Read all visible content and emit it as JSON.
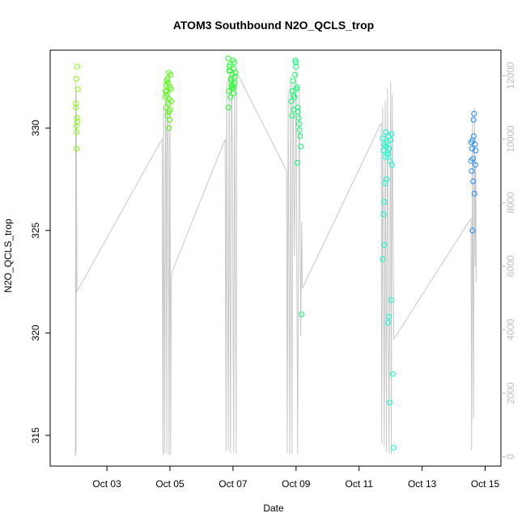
{
  "chart_data": {
    "type": "scatter",
    "title": "ATOM3 Southbound N2O_QCLS_trop",
    "xlabel": "Date",
    "ylabel": "N2O_QCLS_trop",
    "x_ticks": [
      "Oct 03",
      "Oct 05",
      "Oct 07",
      "Oct 09",
      "Oct 11",
      "Oct 13",
      "Oct 15"
    ],
    "x_tick_values": [
      3,
      5,
      7,
      9,
      11,
      13,
      15
    ],
    "xlim": [
      1.2,
      15.5
    ],
    "y_ticks": [
      315,
      320,
      325,
      330
    ],
    "ylim": [
      313.5,
      333.8
    ],
    "y2_ticks": [
      0,
      2000,
      4000,
      6000,
      8000,
      10000,
      12000
    ],
    "y2lim": [
      -300,
      12800
    ],
    "y2_label": "",
    "grid": false,
    "legend": "none",
    "point_color_note": "points colored green to blue by date",
    "altitude_color": "#c8c8c8",
    "points": [
      {
        "x": 2.02,
        "y": 331.2,
        "color": "#7fff00"
      },
      {
        "x": 2.05,
        "y": 330.5,
        "color": "#7fff00"
      },
      {
        "x": 2.03,
        "y": 330.1,
        "color": "#7fff00"
      },
      {
        "x": 2.06,
        "y": 330.3,
        "color": "#7fff00"
      },
      {
        "x": 2.04,
        "y": 329.8,
        "color": "#7fff00"
      },
      {
        "x": 2.02,
        "y": 331.0,
        "color": "#7fff00"
      },
      {
        "x": 2.08,
        "y": 331.9,
        "color": "#7fff00"
      },
      {
        "x": 2.03,
        "y": 332.4,
        "color": "#7fff00"
      },
      {
        "x": 2.06,
        "y": 333.0,
        "color": "#7fff00"
      },
      {
        "x": 2.04,
        "y": 329.0,
        "color": "#7fff00"
      },
      {
        "x": 4.85,
        "y": 331.5,
        "color": "#4cff00"
      },
      {
        "x": 4.88,
        "y": 332.1,
        "color": "#4cff00"
      },
      {
        "x": 4.9,
        "y": 331.8,
        "color": "#4cff00"
      },
      {
        "x": 4.92,
        "y": 332.4,
        "color": "#4cff00"
      },
      {
        "x": 4.95,
        "y": 331.2,
        "color": "#4cff00"
      },
      {
        "x": 4.97,
        "y": 330.8,
        "color": "#4cff00"
      },
      {
        "x": 5.0,
        "y": 332.0,
        "color": "#4cff00"
      },
      {
        "x": 5.02,
        "y": 332.6,
        "color": "#4cff00"
      },
      {
        "x": 4.87,
        "y": 331.0,
        "color": "#4cff00"
      },
      {
        "x": 4.93,
        "y": 330.6,
        "color": "#4cff00"
      },
      {
        "x": 4.98,
        "y": 331.4,
        "color": "#4cff00"
      },
      {
        "x": 5.03,
        "y": 331.9,
        "color": "#4cff00"
      },
      {
        "x": 4.9,
        "y": 332.3,
        "color": "#4cff00"
      },
      {
        "x": 4.96,
        "y": 332.7,
        "color": "#4cff00"
      },
      {
        "x": 5.01,
        "y": 330.9,
        "color": "#4cff00"
      },
      {
        "x": 4.99,
        "y": 330.4,
        "color": "#4cff00"
      },
      {
        "x": 4.89,
        "y": 331.6,
        "color": "#4cff00"
      },
      {
        "x": 5.04,
        "y": 331.3,
        "color": "#4cff00"
      },
      {
        "x": 4.94,
        "y": 332.2,
        "color": "#4cff00"
      },
      {
        "x": 4.86,
        "y": 331.8,
        "color": "#4cff00"
      },
      {
        "x": 4.97,
        "y": 330.0,
        "color": "#4cff00"
      },
      {
        "x": 6.85,
        "y": 333.4,
        "color": "#1aff29"
      },
      {
        "x": 6.88,
        "y": 332.8,
        "color": "#1aff29"
      },
      {
        "x": 6.9,
        "y": 333.1,
        "color": "#1aff29"
      },
      {
        "x": 6.93,
        "y": 332.4,
        "color": "#1aff29"
      },
      {
        "x": 6.95,
        "y": 332.0,
        "color": "#1aff29"
      },
      {
        "x": 6.98,
        "y": 332.6,
        "color": "#1aff29"
      },
      {
        "x": 7.0,
        "y": 333.3,
        "color": "#1aff29"
      },
      {
        "x": 7.03,
        "y": 332.9,
        "color": "#1aff29"
      },
      {
        "x": 7.05,
        "y": 332.2,
        "color": "#1aff29"
      },
      {
        "x": 7.08,
        "y": 332.7,
        "color": "#1aff29"
      },
      {
        "x": 6.87,
        "y": 331.8,
        "color": "#1aff29"
      },
      {
        "x": 6.92,
        "y": 331.5,
        "color": "#1aff29"
      },
      {
        "x": 6.97,
        "y": 332.1,
        "color": "#1aff29"
      },
      {
        "x": 7.02,
        "y": 331.7,
        "color": "#1aff29"
      },
      {
        "x": 7.06,
        "y": 332.5,
        "color": "#1aff29"
      },
      {
        "x": 6.89,
        "y": 333.0,
        "color": "#1aff29"
      },
      {
        "x": 6.94,
        "y": 332.3,
        "color": "#1aff29"
      },
      {
        "x": 6.99,
        "y": 331.9,
        "color": "#1aff29"
      },
      {
        "x": 7.04,
        "y": 333.2,
        "color": "#1aff29"
      },
      {
        "x": 6.86,
        "y": 331.0,
        "color": "#1aff29"
      },
      {
        "x": 7.01,
        "y": 332.0,
        "color": "#1aff29"
      },
      {
        "x": 6.91,
        "y": 332.8,
        "color": "#1aff29"
      },
      {
        "x": 8.85,
        "y": 331.3,
        "color": "#00ff66"
      },
      {
        "x": 8.88,
        "y": 331.8,
        "color": "#00ff66"
      },
      {
        "x": 8.9,
        "y": 332.3,
        "color": "#00ff66"
      },
      {
        "x": 8.93,
        "y": 330.9,
        "color": "#00ff66"
      },
      {
        "x": 8.95,
        "y": 331.5,
        "color": "#00ff66"
      },
      {
        "x": 8.98,
        "y": 333.3,
        "color": "#00ff66"
      },
      {
        "x": 9.0,
        "y": 333.0,
        "color": "#00ff66"
      },
      {
        "x": 9.03,
        "y": 332.0,
        "color": "#00ff66"
      },
      {
        "x": 9.05,
        "y": 331.0,
        "color": "#00ff66"
      },
      {
        "x": 9.08,
        "y": 330.5,
        "color": "#00ff66"
      },
      {
        "x": 9.1,
        "y": 330.2,
        "color": "#00ff66"
      },
      {
        "x": 9.13,
        "y": 329.6,
        "color": "#00ff66"
      },
      {
        "x": 9.15,
        "y": 329.1,
        "color": "#00ff66"
      },
      {
        "x": 8.87,
        "y": 330.6,
        "color": "#00ff66"
      },
      {
        "x": 8.92,
        "y": 331.6,
        "color": "#00ff66"
      },
      {
        "x": 8.97,
        "y": 332.6,
        "color": "#00ff66"
      },
      {
        "x": 9.02,
        "y": 331.9,
        "color": "#00ff66"
      },
      {
        "x": 9.06,
        "y": 330.8,
        "color": "#00ff66"
      },
      {
        "x": 9.11,
        "y": 329.9,
        "color": "#00ff66"
      },
      {
        "x": 9.04,
        "y": 328.3,
        "color": "#00ff66"
      },
      {
        "x": 9.18,
        "y": 320.9,
        "color": "#00ff66"
      },
      {
        "x": 8.99,
        "y": 333.2,
        "color": "#00ff66"
      },
      {
        "x": 11.75,
        "y": 329.5,
        "color": "#00ffcc"
      },
      {
        "x": 11.78,
        "y": 328.9,
        "color": "#00ffcc"
      },
      {
        "x": 11.8,
        "y": 329.2,
        "color": "#00ffcc"
      },
      {
        "x": 11.83,
        "y": 328.6,
        "color": "#00ffcc"
      },
      {
        "x": 11.85,
        "y": 329.8,
        "color": "#00ffcc"
      },
      {
        "x": 11.88,
        "y": 329.3,
        "color": "#00ffcc"
      },
      {
        "x": 11.9,
        "y": 328.8,
        "color": "#00ffcc"
      },
      {
        "x": 11.93,
        "y": 329.6,
        "color": "#00ffcc"
      },
      {
        "x": 11.95,
        "y": 329.0,
        "color": "#00ffcc"
      },
      {
        "x": 11.98,
        "y": 328.4,
        "color": "#00ffcc"
      },
      {
        "x": 12.0,
        "y": 329.4,
        "color": "#00ffcc"
      },
      {
        "x": 12.03,
        "y": 329.7,
        "color": "#00ffcc"
      },
      {
        "x": 12.05,
        "y": 328.2,
        "color": "#00ffcc"
      },
      {
        "x": 11.82,
        "y": 327.3,
        "color": "#00ffcc"
      },
      {
        "x": 11.87,
        "y": 327.5,
        "color": "#00ffcc"
      },
      {
        "x": 11.8,
        "y": 326.4,
        "color": "#00ffcc"
      },
      {
        "x": 11.78,
        "y": 325.8,
        "color": "#00ffcc"
      },
      {
        "x": 11.8,
        "y": 324.3,
        "color": "#00ffcc"
      },
      {
        "x": 11.75,
        "y": 323.6,
        "color": "#00ffcc"
      },
      {
        "x": 12.02,
        "y": 321.6,
        "color": "#00ffcc"
      },
      {
        "x": 11.95,
        "y": 320.8,
        "color": "#00ffcc"
      },
      {
        "x": 11.92,
        "y": 320.5,
        "color": "#00ffcc"
      },
      {
        "x": 12.07,
        "y": 318.0,
        "color": "#00ffcc"
      },
      {
        "x": 11.97,
        "y": 316.6,
        "color": "#00ffcc"
      },
      {
        "x": 12.1,
        "y": 314.4,
        "color": "#00ffcc"
      },
      {
        "x": 11.86,
        "y": 329.1,
        "color": "#00ffcc"
      },
      {
        "x": 11.91,
        "y": 328.7,
        "color": "#00ffcc"
      },
      {
        "x": 14.55,
        "y": 328.4,
        "color": "#1a8cff"
      },
      {
        "x": 14.58,
        "y": 329.0,
        "color": "#1a8cff"
      },
      {
        "x": 14.6,
        "y": 329.4,
        "color": "#1a8cff"
      },
      {
        "x": 14.63,
        "y": 330.4,
        "color": "#1a8cff"
      },
      {
        "x": 14.65,
        "y": 330.7,
        "color": "#1a8cff"
      },
      {
        "x": 14.68,
        "y": 329.2,
        "color": "#1a8cff"
      },
      {
        "x": 14.7,
        "y": 328.9,
        "color": "#1a8cff"
      },
      {
        "x": 14.57,
        "y": 327.9,
        "color": "#1a8cff"
      },
      {
        "x": 14.62,
        "y": 327.4,
        "color": "#1a8cff"
      },
      {
        "x": 14.66,
        "y": 326.8,
        "color": "#1a8cff"
      },
      {
        "x": 14.6,
        "y": 325.0,
        "color": "#1a8cff"
      },
      {
        "x": 14.64,
        "y": 329.6,
        "color": "#1a8cff"
      },
      {
        "x": 14.69,
        "y": 328.2,
        "color": "#1a8cff"
      },
      {
        "x": 14.56,
        "y": 329.3,
        "color": "#1a8cff"
      },
      {
        "x": 14.61,
        "y": 328.5,
        "color": "#1a8cff"
      }
    ],
    "altitude_line": [
      [
        2.0,
        0
      ],
      [
        2.01,
        11800
      ],
      [
        2.02,
        100
      ],
      [
        2.03,
        11500
      ],
      [
        2.05,
        5200
      ],
      [
        4.75,
        10000
      ],
      [
        4.78,
        50
      ],
      [
        4.8,
        11000
      ],
      [
        4.83,
        100
      ],
      [
        4.86,
        11500
      ],
      [
        4.88,
        9500
      ],
      [
        4.9,
        80
      ],
      [
        4.92,
        12000
      ],
      [
        4.95,
        9300
      ],
      [
        4.97,
        60
      ],
      [
        5.0,
        11800
      ],
      [
        5.02,
        60
      ],
      [
        5.04,
        5500
      ],
      [
        5.06,
        5800
      ],
      [
        6.75,
        10000
      ],
      [
        6.78,
        150
      ],
      [
        6.8,
        11800
      ],
      [
        6.85,
        200
      ],
      [
        6.88,
        12000
      ],
      [
        6.92,
        100
      ],
      [
        6.95,
        12200
      ],
      [
        6.98,
        9800
      ],
      [
        7.02,
        120
      ],
      [
        7.05,
        12300
      ],
      [
        7.1,
        80
      ],
      [
        7.12,
        12100
      ],
      [
        8.7,
        9000
      ],
      [
        8.72,
        100
      ],
      [
        8.75,
        11500
      ],
      [
        8.8,
        60
      ],
      [
        8.83,
        12000
      ],
      [
        8.87,
        90
      ],
      [
        8.9,
        11800
      ],
      [
        8.95,
        6300
      ],
      [
        9.0,
        12200
      ],
      [
        9.05,
        80
      ],
      [
        9.1,
        11500
      ],
      [
        9.15,
        3800
      ],
      [
        9.18,
        7400
      ],
      [
        9.2,
        5300
      ],
      [
        11.7,
        10500
      ],
      [
        11.72,
        400
      ],
      [
        11.75,
        11000
      ],
      [
        11.8,
        300
      ],
      [
        11.83,
        11200
      ],
      [
        11.87,
        150
      ],
      [
        11.9,
        11600
      ],
      [
        11.95,
        100
      ],
      [
        12.0,
        11800
      ],
      [
        12.02,
        80
      ],
      [
        12.05,
        11400
      ],
      [
        12.1,
        3700
      ],
      [
        14.55,
        7500
      ],
      [
        14.57,
        200
      ],
      [
        14.6,
        10800
      ],
      [
        14.63,
        1200
      ],
      [
        14.66,
        11000
      ],
      [
        14.68,
        6000
      ],
      [
        14.7,
        9500
      ],
      [
        14.72,
        5500
      ]
    ]
  }
}
